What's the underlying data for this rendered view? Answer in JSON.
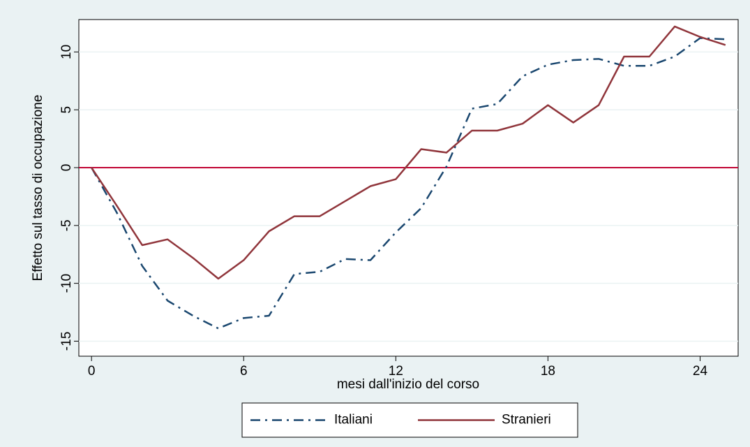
{
  "chart_data": {
    "type": "line",
    "x_label": "mesi dall'inizio del corso",
    "y_label": "Effetto sul tasso di occupazione",
    "x": [
      0,
      1,
      2,
      3,
      4,
      5,
      6,
      7,
      8,
      9,
      10,
      11,
      12,
      13,
      14,
      15,
      16,
      17,
      18,
      19,
      20,
      21,
      22,
      23,
      24,
      25
    ],
    "series": [
      {
        "name": "Italiani",
        "color": "#1a476f",
        "line_style": "dash-dot",
        "values": [
          0,
          -3.9,
          -8.5,
          -11.5,
          -12.8,
          -13.9,
          -13.0,
          -12.8,
          -9.2,
          -9.0,
          -7.9,
          -8.0,
          -5.6,
          -3.5,
          0.1,
          5.1,
          5.5,
          7.9,
          8.9,
          9.3,
          9.4,
          8.8,
          8.8,
          9.6,
          11.2,
          11.1
        ]
      },
      {
        "name": "Stranieri",
        "color": "#90353b",
        "line_style": "solid",
        "values": [
          0,
          -3.3,
          -6.7,
          -6.2,
          -7.8,
          -9.6,
          -8.0,
          -5.5,
          -4.2,
          -4.2,
          -2.9,
          -1.6,
          -1.0,
          1.6,
          1.3,
          3.2,
          3.2,
          3.8,
          5.4,
          3.9,
          5.4,
          9.6,
          9.6,
          12.2,
          11.3,
          10.6
        ]
      }
    ],
    "xlim": [
      -0.5,
      25.5
    ],
    "xticks": [
      0,
      6,
      12,
      18,
      24
    ],
    "ylim": [
      -16.3,
      12.8
    ],
    "yticks": [
      -15,
      -10,
      -5,
      0,
      5,
      10
    ],
    "grid": true,
    "reference_line": {
      "value": 0,
      "color": "#c10534"
    },
    "legend_position": "bottom"
  }
}
